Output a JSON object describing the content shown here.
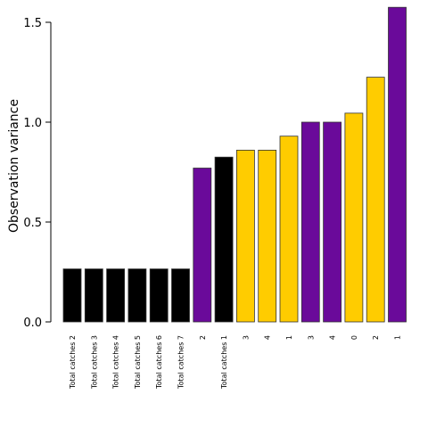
{
  "chart_data": {
    "type": "bar",
    "title": "",
    "xlabel": "",
    "ylabel": "Observation variance",
    "ylim": [
      0,
      1.6
    ],
    "yticks": [
      "0.0",
      "0.5",
      "1.0",
      "1.5"
    ],
    "ytick_values": [
      0,
      0.5,
      1.0,
      1.5
    ],
    "grid": false,
    "categories": [
      "Total catches 2",
      "Total catches 3",
      "Total catches 4",
      "Total catches 5",
      "Total catches 6",
      "Total catches 7",
      "2",
      "Total catches 1",
      "3",
      "4",
      "1",
      "3",
      "4",
      "0",
      "2",
      "1"
    ],
    "values": [
      0.265,
      0.265,
      0.265,
      0.265,
      0.265,
      0.265,
      0.77,
      0.825,
      0.86,
      0.86,
      0.93,
      1.0,
      1.0,
      1.045,
      1.225,
      1.575
    ],
    "bar_colors": [
      "#000000",
      "#000000",
      "#000000",
      "#000000",
      "#000000",
      "#000000",
      "#6a0a9a",
      "#000000",
      "#ffcc00",
      "#ffcc00",
      "#ffcc00",
      "#6a0a9a",
      "#6a0a9a",
      "#ffcc00",
      "#ffcc00",
      "#6a0a9a"
    ]
  }
}
